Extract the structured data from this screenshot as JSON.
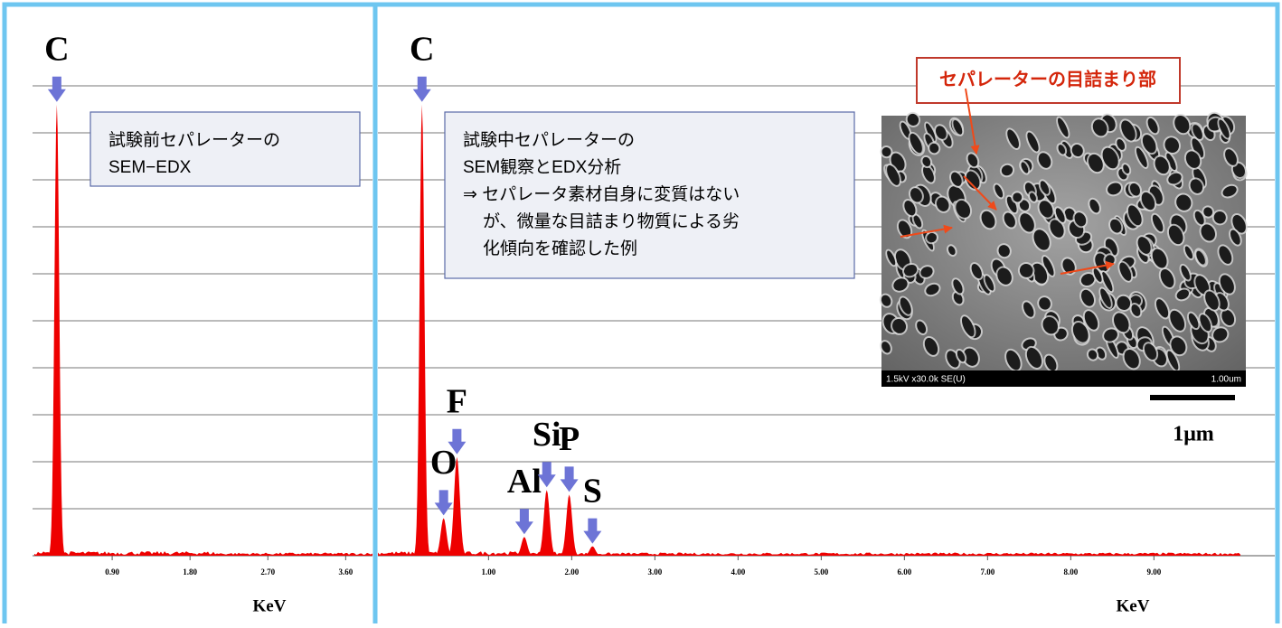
{
  "chart_data": [
    {
      "type": "spectrum",
      "x_label": "KeV",
      "color": "#ee0000",
      "grid": true,
      "xlim": [
        0,
        3.91
      ],
      "xticks": [
        {
          "value": 0.9,
          "label": "0.90"
        },
        {
          "value": 1.8,
          "label": "1.80"
        },
        {
          "value": 2.7,
          "label": "2.70"
        },
        {
          "value": 3.6,
          "label": "3.60"
        }
      ],
      "ylim": [
        0,
        10.5
      ],
      "yticks": [
        1,
        2,
        3,
        4,
        5,
        6,
        7,
        8,
        9,
        10
      ],
      "peaks": [
        {
          "label": "C",
          "x": 0.26,
          "value": 9.6
        }
      ],
      "annotation": [
        "試験前セパレーターの",
        "SEM−EDX"
      ]
    },
    {
      "type": "spectrum",
      "x_label": "KeV",
      "color": "#ee0000",
      "grid": true,
      "xlim": [
        -0.33,
        10.04
      ],
      "xticks": [
        {
          "value": 1,
          "label": "1.00"
        },
        {
          "value": 2,
          "label": "2.00"
        },
        {
          "value": 3,
          "label": "3.00"
        },
        {
          "value": 4,
          "label": "4.00"
        },
        {
          "value": 5,
          "label": "5.00"
        },
        {
          "value": 6,
          "label": "6.00"
        },
        {
          "value": 7,
          "label": "7.00"
        },
        {
          "value": 8,
          "label": "8.00"
        },
        {
          "value": 9,
          "label": "9.00"
        }
      ],
      "ylim": [
        0,
        10.5
      ],
      "yticks": [
        1,
        2,
        3,
        4,
        5,
        6,
        7,
        8,
        9,
        10
      ],
      "peaks": [
        {
          "label": "C",
          "x": 0.2,
          "value": 9.6
        },
        {
          "label": "O",
          "x": 0.46,
          "value": 0.8
        },
        {
          "label": "F",
          "x": 0.62,
          "value": 2.1
        },
        {
          "label": "Al",
          "x": 1.43,
          "value": 0.4
        },
        {
          "label": "Si",
          "x": 1.7,
          "value": 1.4
        },
        {
          "label": "P",
          "x": 1.97,
          "value": 1.3
        },
        {
          "label": "S",
          "x": 2.25,
          "value": 0.2
        }
      ],
      "annotation": [
        "試験中セパレーターの",
        "SEM観察とEDX分析",
        "⇒ セパレータ素材自身に変質はない",
        "が、微量な目詰まり物質による劣",
        "化傾向を確認した例"
      ]
    }
  ],
  "sem_image": {
    "callout": "セパレーターの目詰まり部",
    "info_left": "1.5kV x30.0k SE(U)",
    "info_right": "1.00um",
    "scale_label": "1μm"
  }
}
